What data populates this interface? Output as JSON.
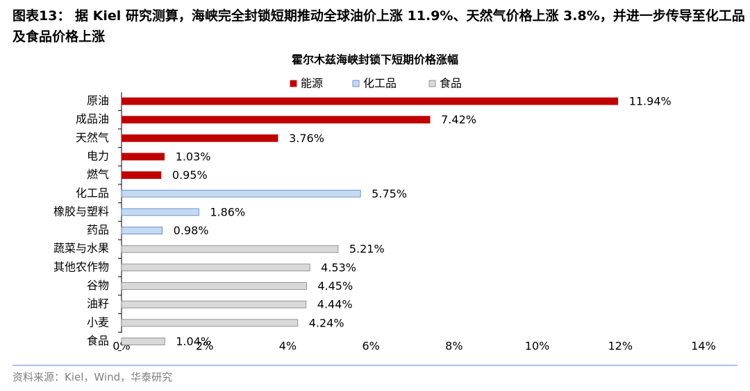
{
  "header": {
    "title": "图表13： 据 Kiel 研究测算，海峡完全封锁短期推动全球油价上涨 11.9%、天然气价格上涨 3.8%，并进一步传导至化工品及食品价格上涨"
  },
  "chart_data": {
    "type": "hbar",
    "title": "霍尔木兹海峡封锁下短期价格涨幅",
    "categories": [
      "原油",
      "成品油",
      "天然气",
      "电力",
      "燃气",
      "化工品",
      "橡胶与塑料",
      "药品",
      "蔬菜与水果",
      "其他农作物",
      "谷物",
      "油籽",
      "小麦",
      "食品"
    ],
    "series": [
      {
        "name": "能源",
        "color": "#c00000",
        "values": [
          11.94,
          7.42,
          3.76,
          1.03,
          0.95,
          null,
          null,
          null,
          null,
          null,
          null,
          null,
          null,
          null
        ],
        "value_labels": [
          "11.94%",
          "7.42%",
          "3.76%",
          "1.03%",
          "0.95%",
          null,
          null,
          null,
          null,
          null,
          null,
          null,
          null,
          null
        ]
      },
      {
        "name": "化工品",
        "color": "#c5d9f1",
        "values": [
          null,
          null,
          null,
          null,
          null,
          5.75,
          1.86,
          0.98,
          null,
          null,
          null,
          null,
          null,
          null
        ],
        "value_labels": [
          null,
          null,
          null,
          null,
          null,
          "5.75%",
          "1.86%",
          "0.98%",
          null,
          null,
          null,
          null,
          null,
          null
        ]
      },
      {
        "name": "食品",
        "color": "#d9d9d9",
        "values": [
          null,
          null,
          null,
          null,
          null,
          null,
          null,
          null,
          5.21,
          4.53,
          4.45,
          4.44,
          4.24,
          1.04
        ],
        "value_labels": [
          null,
          null,
          null,
          null,
          null,
          null,
          null,
          null,
          "5.21%",
          "4.53%",
          "4.45%",
          "4.44%",
          "4.24%",
          "1.04%"
        ]
      }
    ],
    "xlim": [
      0,
      14
    ],
    "xticks": [
      {
        "value": 0,
        "label": "0%"
      },
      {
        "value": 2,
        "label": "2%"
      },
      {
        "value": 4,
        "label": "4%"
      },
      {
        "value": 6,
        "label": "6%"
      },
      {
        "value": 8,
        "label": "8%"
      },
      {
        "value": 10,
        "label": "10%"
      },
      {
        "value": 12,
        "label": "12%"
      },
      {
        "value": 14,
        "label": "14%"
      }
    ],
    "legend": "top"
  },
  "footer": {
    "source": "资料来源：Kiel，Wind，华泰研究"
  }
}
